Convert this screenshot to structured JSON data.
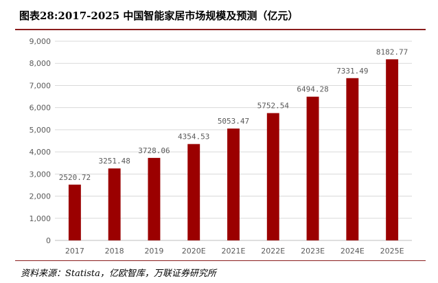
{
  "title": "图表28:2017-2025 中国智能家居市场规模及预测（亿元）",
  "source": "资料来源：Statista，亿欧智库，万联证券研究所",
  "colors": {
    "bar": "#9b0000",
    "grid": "#d9d9d9",
    "axis": "#bfbfbf",
    "text": "#595959",
    "accent": "#8a1c1c"
  },
  "chart_data": {
    "type": "bar",
    "categories": [
      "2017",
      "2018",
      "2019",
      "2020E",
      "2021E",
      "2022E",
      "2023E",
      "2024E",
      "2025E"
    ],
    "values": [
      2520.72,
      3251.48,
      3728.06,
      4354.53,
      5053.47,
      5752.54,
      6494.28,
      7331.49,
      8182.77
    ],
    "value_labels": [
      "2520.72",
      "3251.48",
      "3728.06",
      "4354.53",
      "5053.47",
      "5752.54",
      "6494.28",
      "7331.49",
      "8182.77"
    ],
    "yticks": [
      0,
      1000,
      2000,
      3000,
      4000,
      5000,
      6000,
      7000,
      8000,
      9000
    ],
    "ytick_labels": [
      "0",
      "1,000",
      "2,000",
      "3,000",
      "4,000",
      "5,000",
      "6,000",
      "7,000",
      "8,000",
      "9,000"
    ],
    "ylim": [
      0,
      9000
    ],
    "grid": true,
    "legend": "none"
  }
}
